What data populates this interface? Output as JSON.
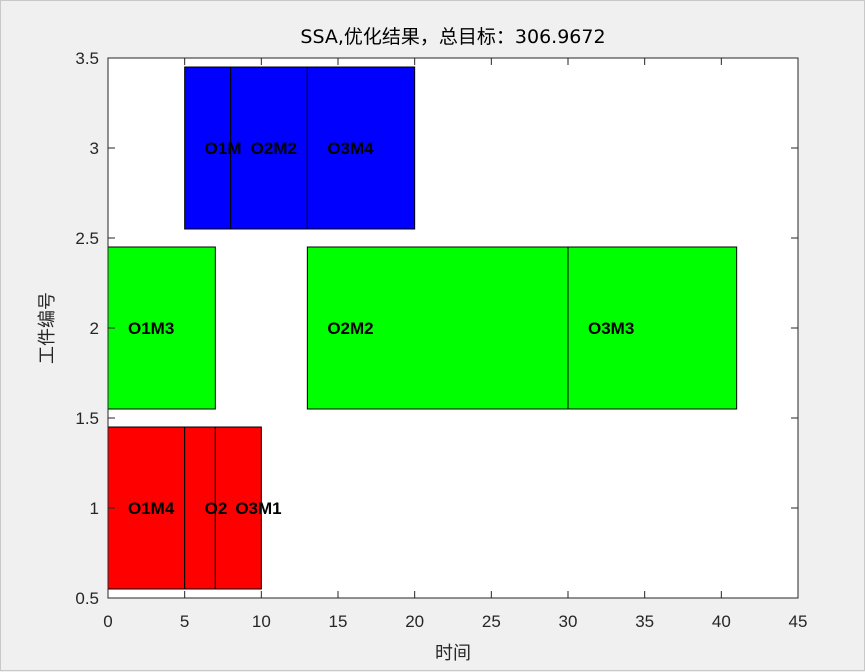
{
  "chart_data": {
    "type": "gantt",
    "title": "SSA,优化结果，总目标：306.9672",
    "xlabel": "时间",
    "ylabel": "工件编号",
    "xlim": [
      0,
      45
    ],
    "ylim": [
      0.5,
      3.5
    ],
    "xticks": [
      "0",
      "5",
      "10",
      "15",
      "20",
      "25",
      "30",
      "35",
      "40",
      "45"
    ],
    "yticks": [
      "0.5",
      "1",
      "1.5",
      "2",
      "2.5",
      "3",
      "3.5"
    ],
    "grid": false,
    "series": [
      {
        "job": 1,
        "color": "#ff0000",
        "tasks": [
          {
            "label": "O1M4",
            "start": 0,
            "end": 5
          },
          {
            "label": "O2",
            "start": 5,
            "end": 7
          },
          {
            "label": "O3M1",
            "start": 7,
            "end": 10
          }
        ]
      },
      {
        "job": 2,
        "color": "#00ff00",
        "tasks": [
          {
            "label": "O1M3",
            "start": 0,
            "end": 7
          },
          {
            "label": "O2M2",
            "start": 13,
            "end": 30
          },
          {
            "label": "O3M3",
            "start": 30,
            "end": 41
          }
        ]
      },
      {
        "job": 3,
        "color": "#0000ff",
        "tasks": [
          {
            "label": "O1M",
            "start": 5,
            "end": 8
          },
          {
            "label": "O2M2",
            "start": 8,
            "end": 13
          },
          {
            "label": "O3M4",
            "start": 13,
            "end": 20
          }
        ]
      }
    ]
  }
}
